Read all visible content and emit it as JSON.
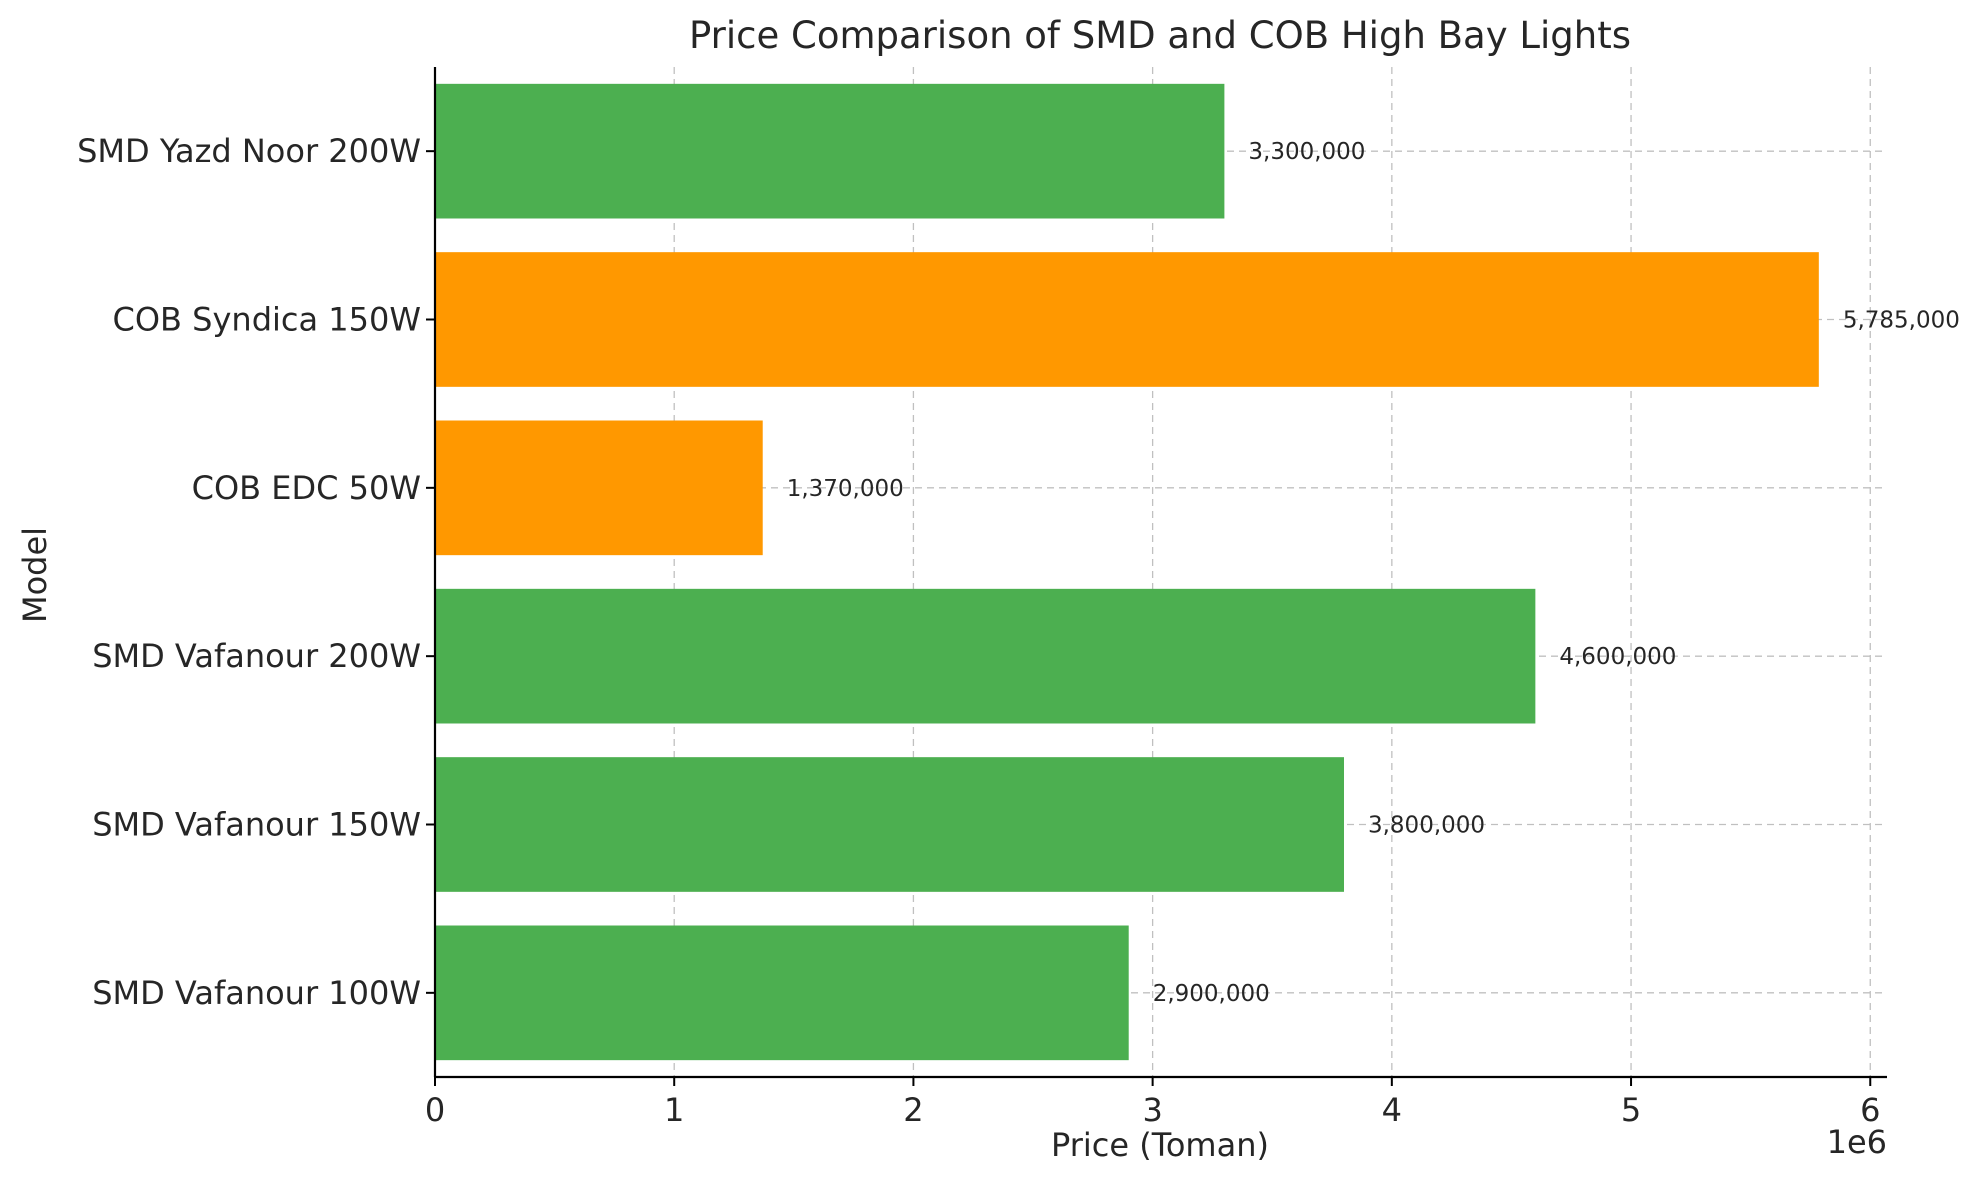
{
  "chart_data": {
    "type": "bar",
    "orientation": "horizontal",
    "title": "Price Comparison of SMD and COB High Bay Lights",
    "xlabel": "Price (Toman)",
    "ylabel": "Model",
    "x_offset_label": "1e6",
    "xlim": [
      0,
      6070000
    ],
    "xticks": [
      0,
      1000000,
      2000000,
      3000000,
      4000000,
      5000000,
      6000000
    ],
    "xtick_labels": [
      "0",
      "1",
      "2",
      "3",
      "4",
      "5",
      "6"
    ],
    "grid": true,
    "categories": [
      "SMD Yazd Noor 200W",
      "COB Syndica 150W",
      "COB EDC 50W",
      "SMD Vafanour 200W",
      "SMD Vafanour 150W",
      "SMD Vafanour 100W"
    ],
    "values": [
      3300000,
      5785000,
      1370000,
      4600000,
      3800000,
      2900000
    ],
    "value_labels": [
      "3,300,000",
      "5,785,000",
      "1,370,000",
      "4,600,000",
      "3,800,000",
      "2,900,000"
    ],
    "colors": [
      "#4caf50",
      "#ff9800",
      "#ff9800",
      "#4caf50",
      "#4caf50",
      "#4caf50"
    ]
  }
}
